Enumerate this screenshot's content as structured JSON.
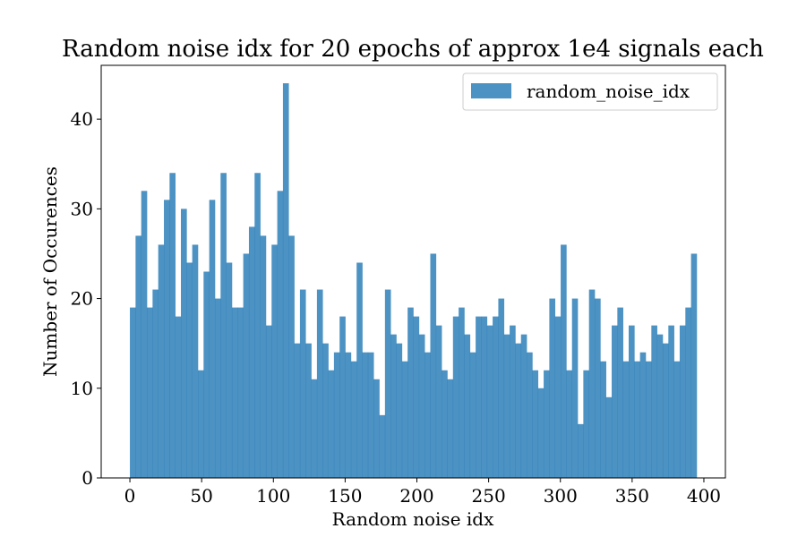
{
  "chart_data": {
    "type": "bar",
    "title": "Random noise idx for 20 epochs of approx 1e4 signals each",
    "xlabel": "Random noise idx",
    "ylabel": "Number of Occurences",
    "xlim": [
      -20,
      415
    ],
    "ylim": [
      0,
      46
    ],
    "xticks": [
      0,
      50,
      100,
      150,
      200,
      250,
      300,
      350,
      400
    ],
    "yticks": [
      0,
      10,
      20,
      30,
      40
    ],
    "bin_start": 0,
    "bin_width": 3.95,
    "bar_color": "#1f77b4",
    "legend": {
      "label": "random_noise_idx",
      "placement": "top-right"
    },
    "grid": false,
    "values": [
      19,
      27,
      32,
      19,
      21,
      26,
      31,
      34,
      18,
      30,
      24,
      26,
      12,
      23,
      31,
      20,
      34,
      24,
      19,
      19,
      25,
      28,
      34,
      27,
      17,
      26,
      32,
      44,
      27,
      15,
      21,
      15,
      11,
      21,
      15,
      12,
      14,
      18,
      14,
      13,
      24,
      14,
      14,
      11,
      7,
      21,
      16,
      15,
      13,
      19,
      18,
      16,
      14,
      25,
      17,
      12,
      11,
      18,
      19,
      16,
      14,
      18,
      18,
      17,
      18,
      20,
      16,
      17,
      15,
      16,
      14,
      12,
      10,
      12,
      20,
      18,
      26,
      12,
      20,
      6,
      12,
      21,
      20,
      13,
      9,
      17,
      19,
      13,
      17,
      13,
      14,
      13,
      17,
      16,
      15,
      17,
      13,
      17,
      19,
      25
    ]
  }
}
